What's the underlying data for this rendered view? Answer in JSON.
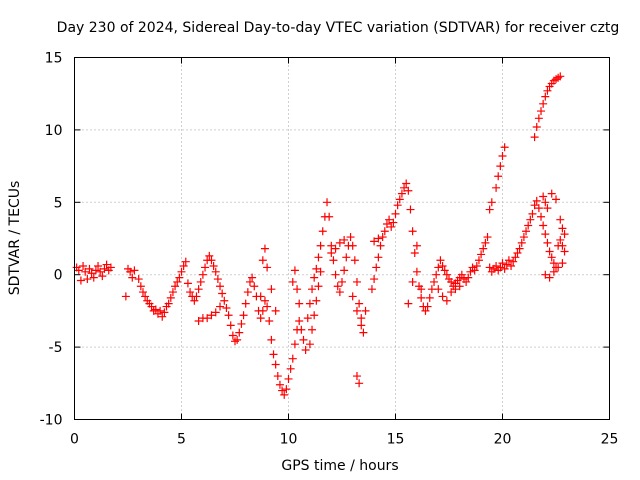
{
  "chart_data": {
    "type": "scatter",
    "title": "Day 230 of 2024, Sidereal Day-to-day VTEC variation (SDTVAR) for receiver cztg",
    "xlabel": "GPS time / hours",
    "ylabel": "SDTVAR / TECUs",
    "xlim": [
      0,
      25
    ],
    "ylim": [
      -10,
      15
    ],
    "x_ticks": [
      0,
      5,
      10,
      15,
      20,
      25
    ],
    "y_ticks": [
      -10,
      -5,
      0,
      5,
      10,
      15
    ],
    "x_tick_labels": [
      "0",
      "5",
      "10",
      "15",
      "20",
      "25"
    ],
    "y_tick_labels": [
      "-10",
      "-5",
      "0",
      "5",
      "10",
      "15"
    ],
    "grid": true,
    "marker": "+",
    "series": [
      {
        "name": "SDTVAR",
        "color": "#ff0000",
        "points": [
          [
            0.1,
            0.5
          ],
          [
            0.2,
            0.3
          ],
          [
            0.3,
            -0.4
          ],
          [
            0.4,
            0.6
          ],
          [
            0.5,
            0.2
          ],
          [
            0.6,
            -0.3
          ],
          [
            0.7,
            0.4
          ],
          [
            0.8,
            0.1
          ],
          [
            0.9,
            -0.2
          ],
          [
            1.0,
            0.3
          ],
          [
            1.1,
            0.6
          ],
          [
            1.2,
            0.2
          ],
          [
            1.3,
            -0.1
          ],
          [
            1.4,
            0.4
          ],
          [
            1.5,
            0.7
          ],
          [
            1.6,
            0.3
          ],
          [
            1.7,
            0.5
          ],
          [
            2.4,
            -1.5
          ],
          [
            2.5,
            0.4
          ],
          [
            2.6,
            0.2
          ],
          [
            2.7,
            -0.2
          ],
          [
            2.8,
            0.3
          ],
          [
            3.0,
            -0.3
          ],
          [
            3.1,
            -0.8
          ],
          [
            3.2,
            -1.2
          ],
          [
            3.3,
            -1.5
          ],
          [
            3.4,
            -1.8
          ],
          [
            3.5,
            -2.0
          ],
          [
            3.6,
            -2.2
          ],
          [
            3.7,
            -2.5
          ],
          [
            3.8,
            -2.4
          ],
          [
            3.9,
            -2.7
          ],
          [
            4.0,
            -2.5
          ],
          [
            4.1,
            -2.9
          ],
          [
            4.2,
            -2.6
          ],
          [
            4.3,
            -2.2
          ],
          [
            4.4,
            -2.0
          ],
          [
            4.5,
            -1.6
          ],
          [
            4.6,
            -1.2
          ],
          [
            4.7,
            -0.8
          ],
          [
            4.8,
            -0.5
          ],
          [
            4.9,
            -0.2
          ],
          [
            5.0,
            0.2
          ],
          [
            5.1,
            0.6
          ],
          [
            5.2,
            0.9
          ],
          [
            5.3,
            -0.6
          ],
          [
            5.4,
            -1.2
          ],
          [
            5.5,
            -1.5
          ],
          [
            5.6,
            -1.8
          ],
          [
            5.7,
            -1.5
          ],
          [
            5.8,
            -1.0
          ],
          [
            5.9,
            -0.5
          ],
          [
            6.0,
            0.0
          ],
          [
            6.1,
            0.5
          ],
          [
            6.2,
            1.0
          ],
          [
            6.3,
            1.3
          ],
          [
            6.4,
            1.0
          ],
          [
            6.5,
            0.6
          ],
          [
            6.6,
            0.2
          ],
          [
            6.7,
            -0.3
          ],
          [
            6.8,
            -0.8
          ],
          [
            6.9,
            -1.3
          ],
          [
            7.0,
            -1.8
          ],
          [
            7.1,
            -2.3
          ],
          [
            7.2,
            -2.8
          ],
          [
            7.3,
            -3.5
          ],
          [
            7.4,
            -4.2
          ],
          [
            7.5,
            -4.6
          ],
          [
            7.6,
            -4.5
          ],
          [
            7.7,
            -4.0
          ],
          [
            7.8,
            -3.4
          ],
          [
            7.9,
            -2.8
          ],
          [
            8.0,
            -2.0
          ],
          [
            8.1,
            -1.2
          ],
          [
            8.2,
            -0.5
          ],
          [
            8.3,
            -0.2
          ],
          [
            8.4,
            -0.8
          ],
          [
            8.5,
            -1.5
          ],
          [
            8.6,
            -2.5
          ],
          [
            8.7,
            -3.0
          ],
          [
            8.8,
            -2.5
          ],
          [
            8.9,
            -1.8
          ],
          [
            9.0,
            -2.2
          ],
          [
            9.1,
            -3.2
          ],
          [
            9.2,
            -4.5
          ],
          [
            9.3,
            -5.5
          ],
          [
            9.4,
            -6.2
          ],
          [
            9.5,
            -7.0
          ],
          [
            9.6,
            -7.6
          ],
          [
            9.7,
            -8.0
          ],
          [
            9.8,
            -8.3
          ],
          [
            9.9,
            -7.9
          ],
          [
            10.0,
            -7.2
          ],
          [
            10.1,
            -6.5
          ],
          [
            10.2,
            -5.8
          ],
          [
            10.3,
            -4.8
          ],
          [
            10.4,
            -3.8
          ],
          [
            10.5,
            -3.2
          ],
          [
            10.6,
            -3.8
          ],
          [
            10.7,
            -4.5
          ],
          [
            10.8,
            -5.2
          ],
          [
            10.9,
            -3.0
          ],
          [
            11.0,
            -2.0
          ],
          [
            11.1,
            -1.0
          ],
          [
            11.2,
            -0.2
          ],
          [
            11.3,
            0.4
          ],
          [
            11.4,
            1.2
          ],
          [
            11.5,
            2.0
          ],
          [
            11.6,
            3.0
          ],
          [
            11.7,
            4.0
          ],
          [
            11.8,
            5.0
          ],
          [
            11.9,
            4.0
          ],
          [
            12.0,
            2.0
          ],
          [
            12.1,
            1.0
          ],
          [
            12.2,
            0.0
          ],
          [
            12.3,
            -0.8
          ],
          [
            12.4,
            -1.2
          ],
          [
            12.5,
            -0.5
          ],
          [
            12.6,
            0.3
          ],
          [
            12.7,
            1.2
          ],
          [
            12.8,
            2.0
          ],
          [
            12.9,
            2.6
          ],
          [
            13.0,
            2.0
          ],
          [
            13.1,
            1.0
          ],
          [
            13.2,
            -0.5
          ],
          [
            13.3,
            -2.0
          ],
          [
            13.4,
            -3.0
          ],
          [
            13.5,
            -4.0
          ],
          [
            13.6,
            -2.5
          ],
          [
            13.2,
            -7.0
          ],
          [
            13.3,
            -7.5
          ],
          [
            13.9,
            -1.0
          ],
          [
            14.0,
            -0.3
          ],
          [
            14.1,
            0.5
          ],
          [
            14.2,
            1.2
          ],
          [
            14.3,
            2.0
          ],
          [
            14.4,
            2.6
          ],
          [
            14.5,
            3.0
          ],
          [
            14.6,
            3.5
          ],
          [
            14.7,
            3.8
          ],
          [
            14.8,
            3.3
          ],
          [
            14.9,
            3.6
          ],
          [
            15.0,
            4.2
          ],
          [
            15.1,
            4.8
          ],
          [
            15.2,
            5.2
          ],
          [
            15.3,
            5.6
          ],
          [
            15.4,
            6.0
          ],
          [
            15.5,
            6.3
          ],
          [
            15.6,
            5.8
          ],
          [
            15.7,
            4.5
          ],
          [
            15.8,
            3.0
          ],
          [
            15.9,
            1.5
          ],
          [
            16.0,
            0.2
          ],
          [
            16.1,
            -0.8
          ],
          [
            16.2,
            -1.6
          ],
          [
            16.3,
            -2.2
          ],
          [
            16.4,
            -2.5
          ],
          [
            16.5,
            -2.2
          ],
          [
            16.6,
            -1.6
          ],
          [
            16.7,
            -1.0
          ],
          [
            16.8,
            -0.5
          ],
          [
            16.9,
            0.0
          ],
          [
            17.0,
            0.5
          ],
          [
            17.1,
            1.0
          ],
          [
            17.2,
            0.6
          ],
          [
            17.3,
            0.3
          ],
          [
            17.4,
            0.0
          ],
          [
            17.5,
            -0.3
          ],
          [
            17.6,
            -0.5
          ],
          [
            17.7,
            -0.8
          ],
          [
            17.8,
            -0.6
          ],
          [
            17.9,
            -0.4
          ],
          [
            18.0,
            -0.2
          ],
          [
            18.1,
            0.0
          ],
          [
            18.2,
            -0.3
          ],
          [
            18.3,
            -0.5
          ],
          [
            18.4,
            -0.2
          ],
          [
            18.5,
            0.2
          ],
          [
            18.6,
            0.5
          ],
          [
            18.7,
            0.3
          ],
          [
            18.8,
            0.6
          ],
          [
            18.9,
            1.0
          ],
          [
            19.0,
            1.4
          ],
          [
            19.1,
            1.8
          ],
          [
            19.2,
            2.2
          ],
          [
            19.3,
            2.6
          ],
          [
            19.4,
            0.5
          ],
          [
            19.5,
            0.2
          ],
          [
            19.6,
            0.4
          ],
          [
            19.7,
            0.6
          ],
          [
            19.8,
            0.3
          ],
          [
            19.9,
            0.5
          ],
          [
            20.0,
            0.8
          ],
          [
            20.1,
            0.4
          ],
          [
            20.2,
            0.7
          ],
          [
            20.3,
            1.0
          ],
          [
            20.4,
            0.6
          ],
          [
            20.5,
            0.9
          ],
          [
            20.6,
            1.2
          ],
          [
            20.7,
            1.5
          ],
          [
            20.8,
            1.8
          ],
          [
            20.9,
            2.2
          ],
          [
            21.0,
            2.6
          ],
          [
            21.1,
            3.0
          ],
          [
            21.2,
            3.4
          ],
          [
            21.3,
            3.8
          ],
          [
            21.4,
            4.2
          ],
          [
            21.5,
            4.8
          ],
          [
            21.6,
            5.1
          ],
          [
            21.7,
            4.6
          ],
          [
            21.8,
            4.0
          ],
          [
            21.9,
            3.4
          ],
          [
            22.0,
            2.8
          ],
          [
            22.1,
            2.2
          ],
          [
            22.2,
            1.6
          ],
          [
            22.3,
            1.2
          ],
          [
            22.4,
            0.8
          ],
          [
            22.5,
            0.5
          ],
          [
            22.6,
            2.0
          ],
          [
            22.7,
            2.4
          ],
          [
            22.8,
            2.0
          ],
          [
            22.9,
            1.6
          ],
          [
            19.4,
            4.5
          ],
          [
            19.5,
            5.0
          ],
          [
            19.7,
            6.0
          ],
          [
            19.8,
            6.8
          ],
          [
            19.9,
            7.5
          ],
          [
            20.0,
            8.2
          ],
          [
            20.1,
            8.8
          ],
          [
            21.5,
            9.5
          ],
          [
            21.6,
            10.2
          ],
          [
            21.7,
            10.8
          ],
          [
            21.8,
            11.3
          ],
          [
            21.9,
            11.8
          ],
          [
            22.0,
            12.3
          ],
          [
            22.1,
            12.7
          ],
          [
            22.2,
            13.0
          ],
          [
            22.3,
            13.2
          ],
          [
            22.4,
            13.4
          ],
          [
            22.5,
            13.5
          ],
          [
            22.6,
            13.6
          ],
          [
            22.7,
            13.7
          ],
          [
            5.8,
            -3.2
          ],
          [
            6.0,
            -3.0
          ],
          [
            6.2,
            -3.0
          ],
          [
            6.4,
            -2.8
          ],
          [
            6.6,
            -2.6
          ],
          [
            6.8,
            -2.2
          ],
          [
            8.7,
            -1.5
          ],
          [
            8.8,
            1.0
          ],
          [
            8.9,
            1.8
          ],
          [
            9.0,
            0.5
          ],
          [
            9.2,
            -1.0
          ],
          [
            9.4,
            -2.5
          ],
          [
            10.2,
            -0.5
          ],
          [
            10.3,
            0.3
          ],
          [
            10.4,
            -1.0
          ],
          [
            10.5,
            -2.0
          ],
          [
            11.0,
            -4.8
          ],
          [
            11.1,
            -3.8
          ],
          [
            11.2,
            -2.8
          ],
          [
            11.3,
            -1.8
          ],
          [
            11.4,
            -0.8
          ],
          [
            11.5,
            0.2
          ],
          [
            12.0,
            1.5
          ],
          [
            12.2,
            1.8
          ],
          [
            12.4,
            2.2
          ],
          [
            12.6,
            2.4
          ],
          [
            13.0,
            -1.5
          ],
          [
            13.2,
            -2.5
          ],
          [
            13.4,
            -3.5
          ],
          [
            14.0,
            2.3
          ],
          [
            14.2,
            2.5
          ],
          [
            15.6,
            -2.0
          ],
          [
            15.8,
            -0.5
          ],
          [
            16.0,
            2.0
          ],
          [
            16.2,
            -1.0
          ],
          [
            17.0,
            -1.0
          ],
          [
            17.2,
            -1.5
          ],
          [
            17.4,
            -1.8
          ],
          [
            17.6,
            -1.2
          ],
          [
            17.8,
            -1.0
          ],
          [
            18.0,
            -0.8
          ],
          [
            22.0,
            0.0
          ],
          [
            22.2,
            -0.2
          ],
          [
            22.4,
            0.2
          ],
          [
            22.6,
            0.5
          ],
          [
            22.8,
            0.8
          ],
          [
            21.9,
            5.4
          ],
          [
            22.0,
            5.0
          ],
          [
            22.1,
            4.6
          ],
          [
            22.3,
            5.6
          ],
          [
            22.5,
            5.2
          ],
          [
            22.7,
            3.8
          ],
          [
            22.8,
            3.2
          ],
          [
            22.9,
            2.8
          ]
        ]
      }
    ]
  }
}
